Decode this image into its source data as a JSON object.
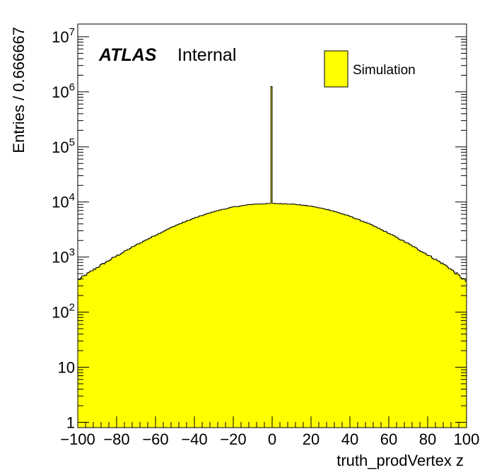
{
  "chart_data": {
    "type": "histogram",
    "title": "",
    "xlabel": "truth_prodVertex z",
    "ylabel": "Entries / 0.666667",
    "xlim": [
      -100,
      100
    ],
    "ylim": [
      0.8,
      17000000
    ],
    "y_scale": "log",
    "bin_width": 0.666667,
    "fill_color": "#ffff00",
    "line_color": "#000000",
    "grid": false,
    "legend": {
      "position": "top-right",
      "entries": [
        "Simulation"
      ]
    },
    "annotations": {
      "experiment": "ATLAS",
      "status": "Internal"
    },
    "x_ticks": [
      {
        "v": -100,
        "label": "−100"
      },
      {
        "v": -80,
        "label": "−80"
      },
      {
        "v": -60,
        "label": "−60"
      },
      {
        "v": -40,
        "label": "−40"
      },
      {
        "v": -20,
        "label": "−20"
      },
      {
        "v": 0,
        "label": "0"
      },
      {
        "v": 20,
        "label": "20"
      },
      {
        "v": 40,
        "label": "40"
      },
      {
        "v": 60,
        "label": "60"
      },
      {
        "v": 80,
        "label": "80"
      },
      {
        "v": 100,
        "label": "100"
      }
    ],
    "y_ticks": [
      {
        "v": 1,
        "base": "1",
        "exp": ""
      },
      {
        "v": 10,
        "base": "10",
        "exp": ""
      },
      {
        "v": 100,
        "base": "10",
        "exp": "2"
      },
      {
        "v": 1000,
        "base": "10",
        "exp": "3"
      },
      {
        "v": 10000,
        "base": "10",
        "exp": "4"
      },
      {
        "v": 100000,
        "base": "10",
        "exp": "5"
      },
      {
        "v": 1000000,
        "base": "10",
        "exp": "6"
      },
      {
        "v": 10000000,
        "base": "10",
        "exp": "7"
      }
    ],
    "profile_points": [
      {
        "x": -100,
        "y": 380
      },
      {
        "x": -90,
        "y": 650
      },
      {
        "x": -80,
        "y": 1050
      },
      {
        "x": -70,
        "y": 1650
      },
      {
        "x": -60,
        "y": 2500
      },
      {
        "x": -50,
        "y": 3700
      },
      {
        "x": -40,
        "y": 5100
      },
      {
        "x": -30,
        "y": 6700
      },
      {
        "x": -20,
        "y": 8100
      },
      {
        "x": -10,
        "y": 9100
      },
      {
        "x": 0,
        "y": 9400
      },
      {
        "x": 10,
        "y": 9200
      },
      {
        "x": 20,
        "y": 8400
      },
      {
        "x": 30,
        "y": 7100
      },
      {
        "x": 40,
        "y": 5500
      },
      {
        "x": 50,
        "y": 4000
      },
      {
        "x": 60,
        "y": 2700
      },
      {
        "x": 70,
        "y": 1750
      },
      {
        "x": 80,
        "y": 1100
      },
      {
        "x": 90,
        "y": 680
      },
      {
        "x": 100,
        "y": 360
      }
    ],
    "peak": {
      "x": 0,
      "y": 1250000
    }
  }
}
